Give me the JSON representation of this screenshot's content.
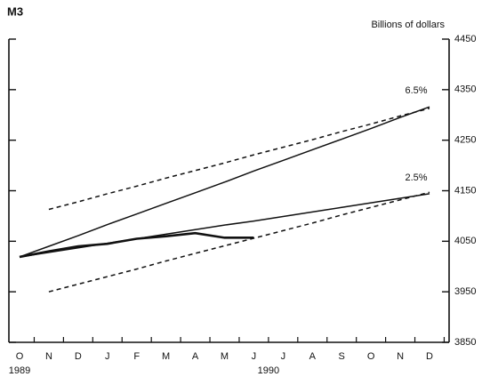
{
  "chart_data": {
    "type": "line",
    "title": "M3",
    "y_axis_label": "Billions of dollars",
    "categories": [
      "O",
      "N",
      "D",
      "J",
      "F",
      "M",
      "A",
      "M",
      "J",
      "J",
      "A",
      "S",
      "O",
      "N",
      "D"
    ],
    "group_labels": [
      "1989",
      "1990"
    ],
    "ylim": [
      3850,
      4450
    ],
    "yticks": [
      3850,
      3950,
      4050,
      4150,
      4250,
      4350,
      4450
    ],
    "grid": false,
    "series": [
      {
        "name": "6.5%",
        "color": "#111111",
        "dashed": false,
        "values": [
          4019,
          4040,
          4061,
          4083,
          4104,
          4125,
          4146,
          4167,
          4189,
          4210,
          4231,
          4252,
          4273,
          4295,
          4316
        ]
      },
      {
        "name": "2.5%",
        "color": "#111111",
        "dashed": false,
        "values": [
          4019,
          4028,
          4037,
          4046,
          4055,
          4064,
          4073,
          4082,
          4090,
          4099,
          4108,
          4117,
          4126,
          4135,
          4144
        ]
      },
      {
        "color": "#111111",
        "dashed": true,
        "values": [
          null,
          4113,
          4128,
          4144,
          4159,
          4175,
          4190,
          4205,
          4221,
          4236,
          4251,
          4267,
          4282,
          4298,
          4313
        ]
      },
      {
        "color": "#111111",
        "dashed": true,
        "values": [
          null,
          3950,
          3965,
          3980,
          3995,
          4011,
          4026,
          4041,
          4056,
          4071,
          4086,
          4102,
          4117,
          4132,
          4147
        ]
      },
      {
        "color": "#111111",
        "dashed": false,
        "width": 2.6,
        "values": [
          4019,
          4030,
          4040,
          4045,
          4055,
          4060,
          4066,
          4057,
          4057,
          null,
          null,
          null,
          null,
          null,
          null
        ]
      }
    ]
  }
}
